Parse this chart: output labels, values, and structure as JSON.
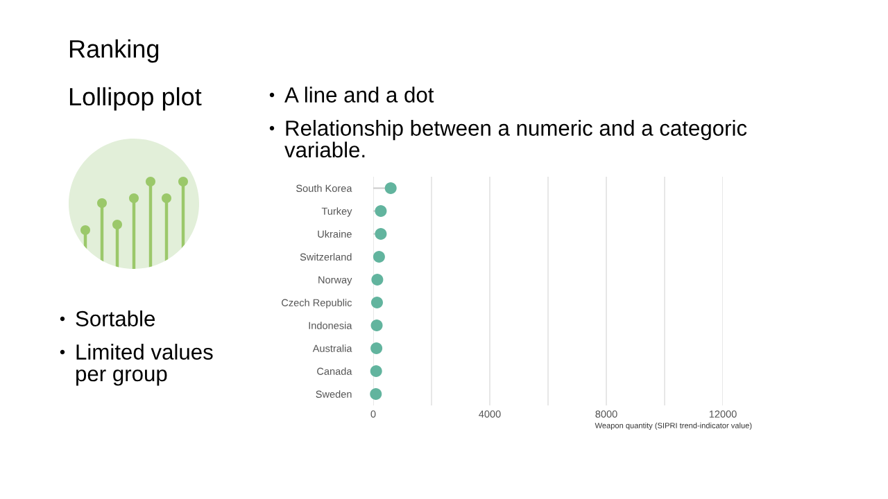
{
  "chart_data": {
    "type": "lollipop",
    "orientation": "horizontal",
    "title": "Ranking",
    "subtitle": "Lollipop plot",
    "annotations": [
      "A line and a dot",
      "Relationship between a numeric and a categoric variable.",
      "Sortable",
      "Limited values per group"
    ],
    "categories": [
      "South Korea",
      "Turkey",
      "Ukraine",
      "Switzerland",
      "Norway",
      "Czech Republic",
      "Indonesia",
      "Australia",
      "Canada",
      "Sweden"
    ],
    "values": [
      600,
      260,
      260,
      200,
      140,
      130,
      120,
      110,
      100,
      90
    ],
    "color": "#62b49e",
    "marker": "circle",
    "xlabel": "Weapon quantity (SIPRI trend-indicator value)",
    "xlim": [
      0,
      12000
    ],
    "xticks": [
      0,
      {
        "value": 2000,
        "label": null
      },
      4000,
      {
        "value": 6000,
        "label": null
      },
      8000,
      {
        "value": 10000,
        "label": null
      },
      12000
    ],
    "grid": "x"
  }
}
